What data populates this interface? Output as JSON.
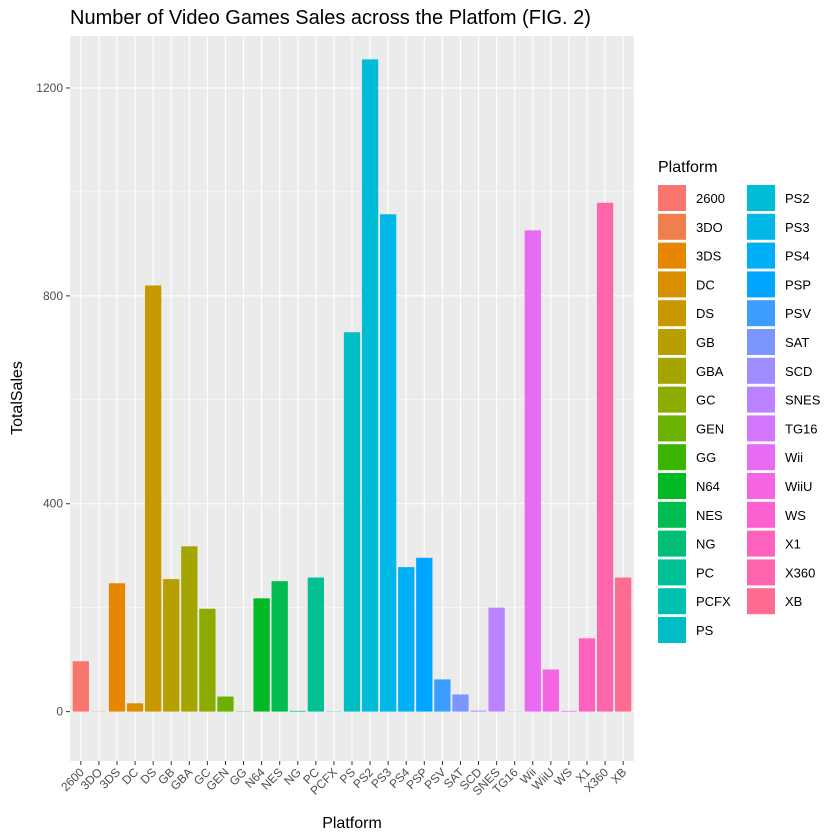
{
  "chart_data": {
    "type": "bar",
    "title": "Number of Video Games Sales across the Platfom (FIG. 2)",
    "xlabel": "Platform",
    "ylabel": "TotalSales",
    "ylim": [
      -95,
      1300
    ],
    "yticks": [
      0,
      400,
      800,
      1200
    ],
    "grid": true,
    "legend_position": "right",
    "legend_title": "Platform",
    "categories": [
      "2600",
      "3DO",
      "3DS",
      "DC",
      "DS",
      "GB",
      "GBA",
      "GC",
      "GEN",
      "GG",
      "N64",
      "NES",
      "NG",
      "PC",
      "PCFX",
      "PS",
      "PS2",
      "PS3",
      "PS4",
      "PSP",
      "PSV",
      "SAT",
      "SCD",
      "SNES",
      "TG16",
      "Wii",
      "WiiU",
      "WS",
      "X1",
      "X360",
      "XB"
    ],
    "values": [
      97,
      0.1,
      247,
      16,
      820,
      255,
      318,
      198,
      29,
      0.04,
      218,
      251,
      1.4,
      258,
      0.03,
      730,
      1255,
      957,
      278,
      296,
      62,
      33,
      1.9,
      200,
      0.2,
      926,
      81,
      1.4,
      141,
      979,
      258
    ],
    "colors": [
      "#F8766D",
      "#F07F4B",
      "#E58700",
      "#D89000",
      "#C99800",
      "#B79F00",
      "#A3A500",
      "#8BAB00",
      "#6BB100",
      "#3AB400",
      "#00B925",
      "#00BC51",
      "#00BF74",
      "#00C094",
      "#00C1AF",
      "#00BFC4",
      "#00BCD7",
      "#00B8E7",
      "#00B0F6",
      "#00A5FF",
      "#3D9CFF",
      "#7997FF",
      "#9F8CFF",
      "#BB83FF",
      "#D378FE",
      "#E76BF3",
      "#F564E3",
      "#FD61D1",
      "#FF61BE",
      "#FF65AA",
      "#FF6C90"
    ]
  }
}
